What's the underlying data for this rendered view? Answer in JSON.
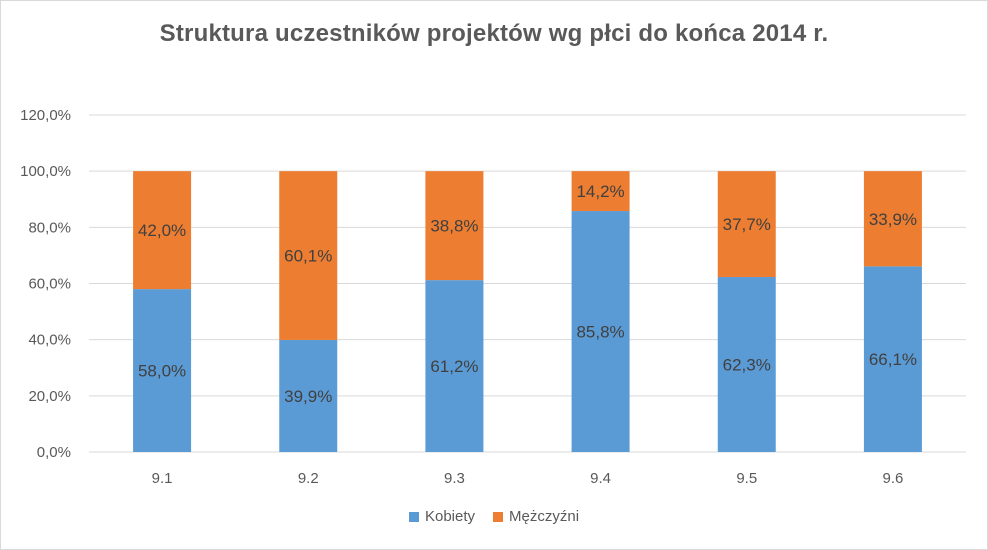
{
  "chart_data": {
    "type": "bar",
    "stacked": true,
    "title": "Struktura uczestników projektów wg płci do końca 2014 r.",
    "categories": [
      "9.1",
      "9.2",
      "9.3",
      "9.4",
      "9.5",
      "9.6"
    ],
    "series": [
      {
        "name": "Kobiety",
        "color": "#5b9bd5",
        "values": [
          58.0,
          39.9,
          61.2,
          85.8,
          62.3,
          66.1
        ],
        "labels": [
          "58,0%",
          "39,9%",
          "61,2%",
          "85,8%",
          "62,3%",
          "66,1%"
        ]
      },
      {
        "name": "Mężczyźni",
        "color": "#ed7d31",
        "values": [
          42.0,
          60.1,
          38.8,
          14.2,
          37.7,
          33.9
        ],
        "labels": [
          "42,0%",
          "60,1%",
          "38,8%",
          "14,2%",
          "37,7%",
          "33,9%"
        ]
      }
    ],
    "ylim": [
      0,
      120
    ],
    "yticks": [
      0,
      20,
      40,
      60,
      80,
      100,
      120
    ],
    "ytick_labels": [
      "0,0%",
      "20,0%",
      "40,0%",
      "60,0%",
      "80,0%",
      "100,0%",
      "120,0%"
    ],
    "grid": true,
    "legend_position": "bottom",
    "xlabel": "",
    "ylabel": ""
  }
}
